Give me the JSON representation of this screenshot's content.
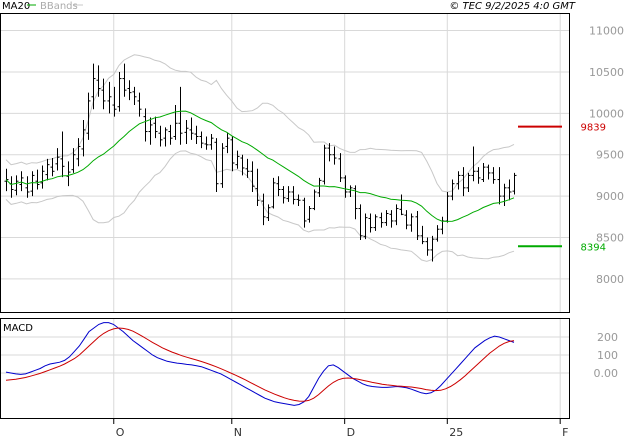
{
  "header": {
    "ma_label": "MA20",
    "bbands_label": "BBands",
    "copyright": "© TEC 9/2/2025 4:0 GMT"
  },
  "colors": {
    "grid": "#d9d9d9",
    "frame": "#000000",
    "candle": "#000000",
    "ma": "#00aa00",
    "bbands": "#c8c8c8",
    "macd": "#0000cc",
    "signal": "#cc0000",
    "resistance": "#cc0000",
    "support": "#00aa00",
    "axis_text": "#999999"
  },
  "chart_data": [
    {
      "type": "candlestick",
      "title": "",
      "ylim": [
        7600,
        11200
      ],
      "y_ticks": [
        8000,
        8500,
        9000,
        9500,
        10000,
        10500,
        11000
      ],
      "x_ticks": [
        {
          "label": "O",
          "index": 21
        },
        {
          "label": "N",
          "index": 44
        },
        {
          "label": "D",
          "index": 66
        },
        {
          "label": "25",
          "index": 86
        },
        {
          "label": "F",
          "index": 108
        }
      ],
      "grid": true,
      "levels": [
        {
          "name": "resistance",
          "value": 9839,
          "label": "9839"
        },
        {
          "name": "support",
          "value": 8394,
          "label": "8394"
        }
      ],
      "ohlc": [
        [
          9180,
          9330,
          9060,
          9200
        ],
        [
          9150,
          9240,
          8980,
          9080
        ],
        [
          9070,
          9250,
          9010,
          9180
        ],
        [
          9140,
          9300,
          9060,
          9220
        ],
        [
          9100,
          9240,
          8980,
          9050
        ],
        [
          9060,
          9300,
          9000,
          9250
        ],
        [
          9180,
          9320,
          9080,
          9140
        ],
        [
          9160,
          9370,
          9090,
          9300
        ],
        [
          9260,
          9450,
          9190,
          9380
        ],
        [
          9350,
          9460,
          9240,
          9300
        ],
        [
          9390,
          9580,
          9310,
          9470
        ],
        [
          9450,
          9780,
          9230,
          9360
        ],
        [
          9240,
          9420,
          9120,
          9290
        ],
        [
          9320,
          9580,
          9280,
          9500
        ],
        [
          9450,
          9700,
          9360,
          9600
        ],
        [
          9570,
          9920,
          9480,
          9800
        ],
        [
          9760,
          10250,
          9680,
          10150
        ],
        [
          10200,
          10600,
          10050,
          10420
        ],
        [
          10400,
          10580,
          10200,
          10300
        ],
        [
          10280,
          10420,
          10050,
          10150
        ],
        [
          10150,
          10380,
          10000,
          10200
        ],
        [
          10100,
          10320,
          9960,
          10050
        ],
        [
          10080,
          10500,
          10020,
          10420
        ],
        [
          10420,
          10600,
          10200,
          10280
        ],
        [
          10300,
          10400,
          10160,
          10250
        ],
        [
          10260,
          10320,
          10100,
          10200
        ],
        [
          10150,
          10250,
          9960,
          10050
        ],
        [
          9960,
          10060,
          9660,
          9780
        ],
        [
          9780,
          9950,
          9620,
          9860
        ],
        [
          9880,
          9960,
          9700,
          9780
        ],
        [
          9760,
          9850,
          9600,
          9680
        ],
        [
          9700,
          9830,
          9600,
          9800
        ],
        [
          9780,
          9860,
          9620,
          9700
        ],
        [
          9720,
          10100,
          9680,
          9880
        ],
        [
          9880,
          10320,
          9620,
          9760
        ],
        [
          9770,
          9920,
          9630,
          9820
        ],
        [
          9800,
          9950,
          9680,
          9760
        ],
        [
          9750,
          9850,
          9630,
          9720
        ],
        [
          9720,
          9780,
          9580,
          9640
        ],
        [
          9630,
          9720,
          9560,
          9620
        ],
        [
          9620,
          9750,
          9560,
          9700
        ],
        [
          9650,
          9700,
          9050,
          9150
        ],
        [
          9150,
          9640,
          9100,
          9580
        ],
        [
          9600,
          9770,
          9520,
          9700
        ],
        [
          9680,
          9720,
          9300,
          9400
        ],
        [
          9380,
          9550,
          9330,
          9480
        ],
        [
          9460,
          9500,
          9250,
          9340
        ],
        [
          9330,
          9450,
          9220,
          9300
        ],
        [
          9300,
          9420,
          9050,
          9120
        ],
        [
          9090,
          9330,
          8880,
          8950
        ],
        [
          8940,
          9030,
          8650,
          8750
        ],
        [
          8740,
          8900,
          8700,
          8860
        ],
        [
          8870,
          9220,
          8850,
          9160
        ],
        [
          9150,
          9240,
          9000,
          9080
        ],
        [
          9080,
          9120,
          8910,
          8980
        ],
        [
          8970,
          9120,
          8930,
          9050
        ],
        [
          9050,
          9120,
          8900,
          8960
        ],
        [
          8960,
          9020,
          8880,
          8950
        ],
        [
          8950,
          8980,
          8620,
          8700
        ],
        [
          8720,
          8880,
          8680,
          8850
        ],
        [
          8850,
          9080,
          8830,
          9050
        ],
        [
          9040,
          9220,
          8990,
          9190
        ],
        [
          9180,
          9620,
          9140,
          9580
        ],
        [
          9580,
          9640,
          9420,
          9500
        ],
        [
          9500,
          9600,
          9380,
          9460
        ],
        [
          9450,
          9520,
          9170,
          9220
        ],
        [
          9220,
          9250,
          8980,
          9050
        ],
        [
          9050,
          9130,
          8990,
          9100
        ],
        [
          9090,
          9130,
          8720,
          8850
        ],
        [
          8850,
          8900,
          8470,
          8520
        ],
        [
          8510,
          8790,
          8480,
          8740
        ],
        [
          8730,
          8790,
          8560,
          8620
        ],
        [
          8620,
          8780,
          8580,
          8750
        ],
        [
          8740,
          8800,
          8620,
          8680
        ],
        [
          8680,
          8830,
          8640,
          8790
        ],
        [
          8780,
          8830,
          8620,
          8700
        ],
        [
          8700,
          8900,
          8650,
          8850
        ],
        [
          8840,
          9020,
          8770,
          8780
        ],
        [
          8770,
          8830,
          8600,
          8650
        ],
        [
          8650,
          8790,
          8570,
          8750
        ],
        [
          8750,
          8820,
          8470,
          8520
        ],
        [
          8520,
          8640,
          8420,
          8450
        ],
        [
          8450,
          8500,
          8280,
          8350
        ],
        [
          8350,
          8520,
          8210,
          8480
        ],
        [
          8480,
          8650,
          8450,
          8600
        ],
        [
          8600,
          8750,
          8540,
          8700
        ],
        [
          8700,
          9050,
          8680,
          9000
        ],
        [
          9000,
          9200,
          8950,
          9150
        ],
        [
          9150,
          9300,
          9080,
          9250
        ],
        [
          9250,
          9350,
          9000,
          9100
        ],
        [
          9100,
          9280,
          9050,
          9250
        ],
        [
          9250,
          9600,
          9180,
          9300
        ],
        [
          9300,
          9350,
          9150,
          9220
        ],
        [
          9200,
          9400,
          9170,
          9350
        ],
        [
          9350,
          9380,
          9200,
          9280
        ],
        [
          9280,
          9350,
          9150,
          9200
        ],
        [
          9200,
          9350,
          8900,
          9000
        ],
        [
          9000,
          9150,
          8880,
          9100
        ],
        [
          9100,
          9200,
          8950,
          9050
        ],
        [
          9060,
          9280,
          9020,
          9250
        ]
      ],
      "x_index_offset": 0
    },
    {
      "type": "line",
      "title": "",
      "label": "MACD",
      "ylim": [
        -250,
        300
      ],
      "y_ticks": [
        {
          "value": 200,
          "label": "200"
        },
        {
          "value": 100,
          "label": "100"
        },
        {
          "value": 0,
          "label": "0.00"
        }
      ],
      "series": [
        {
          "name": "",
          "values": [
            5,
            0,
            -5,
            -8,
            -5,
            5,
            15,
            25,
            40,
            50,
            55,
            60,
            70,
            90,
            120,
            150,
            190,
            230,
            250,
            270,
            280,
            280,
            270,
            250,
            230,
            205,
            180,
            160,
            140,
            120,
            100,
            85,
            75,
            65,
            60,
            55,
            52,
            48,
            45,
            40,
            35,
            25,
            15,
            5,
            -5,
            -20,
            -35,
            -50,
            -65,
            -80,
            -95,
            -110,
            -125,
            -140,
            -150,
            -160,
            -165,
            -170,
            -175,
            -180,
            -175,
            -160,
            -130,
            -80,
            -30,
            10,
            40,
            45,
            30,
            10,
            -10,
            -30,
            -45,
            -60,
            -70,
            -75,
            -78,
            -80,
            -80,
            -78,
            -75,
            -78,
            -82,
            -90,
            -100,
            -110,
            -115,
            -110,
            -95,
            -70,
            -40,
            -10,
            20,
            50,
            80,
            110,
            140,
            160,
            180,
            195,
            205,
            200,
            190,
            180,
            170
          ]
        },
        {
          "name": "",
          "values": [
            -40,
            -38,
            -35,
            -30,
            -25,
            -18,
            -10,
            -2,
            8,
            18,
            28,
            38,
            50,
            65,
            80,
            100,
            125,
            150,
            175,
            200,
            220,
            235,
            245,
            250,
            248,
            242,
            232,
            218,
            202,
            186,
            170,
            155,
            140,
            128,
            116,
            106,
            96,
            88,
            80,
            72,
            64,
            55,
            45,
            35,
            24,
            12,
            0,
            -12,
            -25,
            -38,
            -52,
            -66,
            -80,
            -94,
            -106,
            -118,
            -128,
            -138,
            -146,
            -152,
            -156,
            -157,
            -152,
            -140,
            -120,
            -96,
            -72,
            -52,
            -38,
            -30,
            -28,
            -30,
            -34,
            -40,
            -46,
            -52,
            -57,
            -62,
            -66,
            -69,
            -72,
            -74,
            -76,
            -78,
            -82,
            -86,
            -92,
            -96,
            -98,
            -96,
            -88,
            -75,
            -58,
            -38,
            -15,
            10,
            35,
            60,
            85,
            110,
            130,
            150,
            165,
            175,
            180
          ]
        }
      ]
    }
  ]
}
